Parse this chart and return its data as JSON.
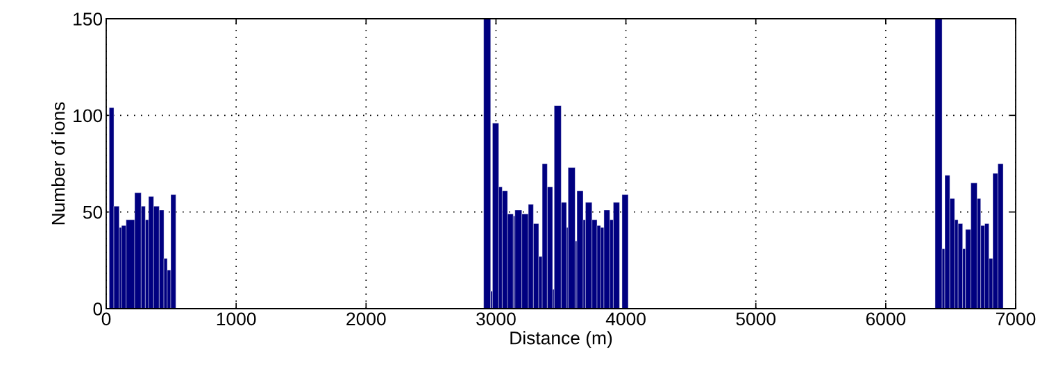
{
  "chart_data": {
    "type": "histogram",
    "xlabel": "Distance (m)",
    "ylabel": "Number of ions",
    "bins": [
      23,
      59,
      100,
      118,
      153,
      219,
      269,
      301,
      326,
      365,
      408,
      444,
      470,
      497,
      536,
      2905,
      2959,
      2973,
      3021,
      3048,
      3089,
      3133,
      3146,
      3199,
      3249,
      3288,
      3329,
      3356,
      3395,
      3436,
      3448,
      3502,
      3543,
      3555,
      3609,
      3623,
      3671,
      3689,
      3739,
      3778,
      3805,
      3831,
      3876,
      3903,
      3951,
      3970,
      4018,
      6380,
      6434,
      6455,
      6493,
      6530,
      6557,
      6592,
      6614,
      6655,
      6703,
      6731,
      6762,
      6794,
      6824,
      6863,
      6904
    ],
    "values": [
      104,
      53,
      42,
      43,
      46,
      60,
      53,
      46,
      58,
      53,
      51,
      26,
      20,
      59,
      0,
      150,
      9,
      96,
      63,
      61,
      49,
      48,
      51,
      49,
      54,
      44,
      27,
      75,
      63,
      10,
      105,
      55,
      42,
      73,
      35,
      61,
      46,
      55,
      46,
      43,
      42,
      51,
      46,
      55,
      0,
      59,
      0,
      150,
      31,
      69,
      57,
      46,
      44,
      31,
      41,
      65,
      57,
      43,
      44,
      26,
      70,
      75
    ],
    "color": "#000080",
    "xlim": [
      0,
      7000
    ],
    "xticks": [
      0,
      1000,
      2000,
      3000,
      4000,
      5000,
      6000,
      7000
    ],
    "ylim": [
      0,
      150
    ],
    "yticks": [
      0,
      50,
      100,
      150
    ],
    "grid": true
  }
}
